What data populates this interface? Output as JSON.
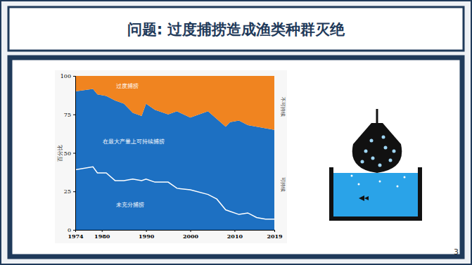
{
  "slide": {
    "title": "问题: 过度捕捞造成渔类种群灭绝",
    "page_number": 3
  },
  "chart_data": {
    "type": "area",
    "stacked": true,
    "y_label": "百分比",
    "annotations": [
      "不可持续",
      "可持续"
    ],
    "x": [
      1974,
      1978,
      1979,
      1981,
      1983,
      1985,
      1987,
      1989,
      1990,
      1992,
      1995,
      1997,
      2000,
      2004,
      2006,
      2008,
      2009,
      2011,
      2013,
      2015,
      2017,
      2019
    ],
    "series": [
      {
        "name": "未充分捕捞",
        "color": "#1d70c2",
        "values": [
          39,
          41,
          37,
          37,
          32,
          32,
          33,
          32,
          33,
          31,
          31,
          27,
          26,
          23,
          20,
          13,
          12,
          10,
          11,
          8,
          7,
          7
        ]
      },
      {
        "name": "在最大产量上可持续捕捞",
        "color": "#1d70c2",
        "values": [
          51,
          50.5,
          51,
          50,
          52,
          50,
          43,
          42,
          49,
          47,
          44,
          50,
          47,
          54,
          52,
          54,
          58,
          61,
          57,
          59,
          59,
          58
        ]
      },
      {
        "name": "过度捕捞",
        "color": "#f08420",
        "values": [
          10,
          8.5,
          12,
          13,
          16,
          18,
          24,
          26,
          18,
          22,
          25,
          23,
          27,
          23,
          28,
          33,
          30,
          29,
          32,
          33,
          34,
          35
        ]
      }
    ],
    "xlim": [
      1974,
      2019
    ],
    "xticks": [
      1974,
      1980,
      1990,
      2000,
      2010,
      2019
    ],
    "ylim": [
      0,
      100
    ],
    "yticks": [
      0,
      25,
      50,
      75,
      100
    ],
    "grid": false
  }
}
